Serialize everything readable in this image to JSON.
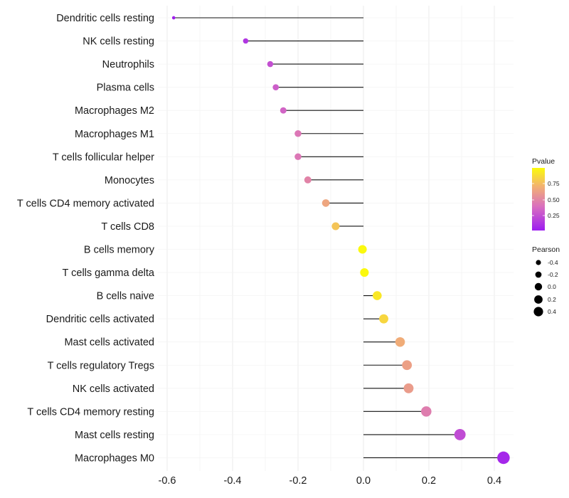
{
  "chart_data": {
    "type": "lollipop",
    "categories": [
      "Dendritic cells resting",
      "NK cells resting",
      "Neutrophils",
      "Plasma cells",
      "Macrophages M2",
      "Macrophages M1",
      "T cells follicular helper",
      "Monocytes",
      "T cells CD4 memory activated",
      "T cells CD8",
      "B cells memory",
      "T cells gamma delta",
      "B cells naive",
      "Dendritic cells activated",
      "Mast cells activated",
      "T cells regulatory  Tregs ",
      "NK cells activated",
      "T cells CD4 memory resting",
      "Mast cells resting",
      "Macrophages M0"
    ],
    "values": [
      -0.58,
      -0.36,
      -0.285,
      -0.268,
      -0.245,
      -0.2,
      -0.2,
      -0.17,
      -0.115,
      -0.085,
      -0.003,
      0.003,
      0.042,
      0.062,
      0.112,
      0.133,
      0.138,
      0.192,
      0.295,
      0.428
    ],
    "pvalues": [
      0.02,
      0.12,
      0.24,
      0.3,
      0.33,
      0.42,
      0.42,
      0.48,
      0.65,
      0.78,
      0.99,
      0.99,
      0.92,
      0.85,
      0.68,
      0.62,
      0.6,
      0.45,
      0.22,
      0.05
    ],
    "xlim": [
      -0.6,
      0.45
    ],
    "x_ticks": [
      -0.6,
      -0.4,
      -0.2,
      0.0,
      0.2,
      0.4
    ],
    "x_tick_labels": [
      "-0.6",
      "-0.4",
      "-0.2",
      "0.0",
      "0.2",
      "0.4"
    ],
    "xlabel": "",
    "ylabel": "",
    "grid": true,
    "legend_position": "right",
    "color_legend": {
      "title": "Pvalue",
      "labels": [
        "0.75",
        "0.50",
        "0.25"
      ],
      "gradient_colors": [
        "#9d1cf0",
        "#d96fbf",
        "#f2b073",
        "#fbfb0a"
      ]
    },
    "size_legend": {
      "title": "Pearson",
      "labels": [
        "-0.4",
        "-0.2",
        "0.0",
        "0.2",
        "0.4"
      ]
    }
  }
}
